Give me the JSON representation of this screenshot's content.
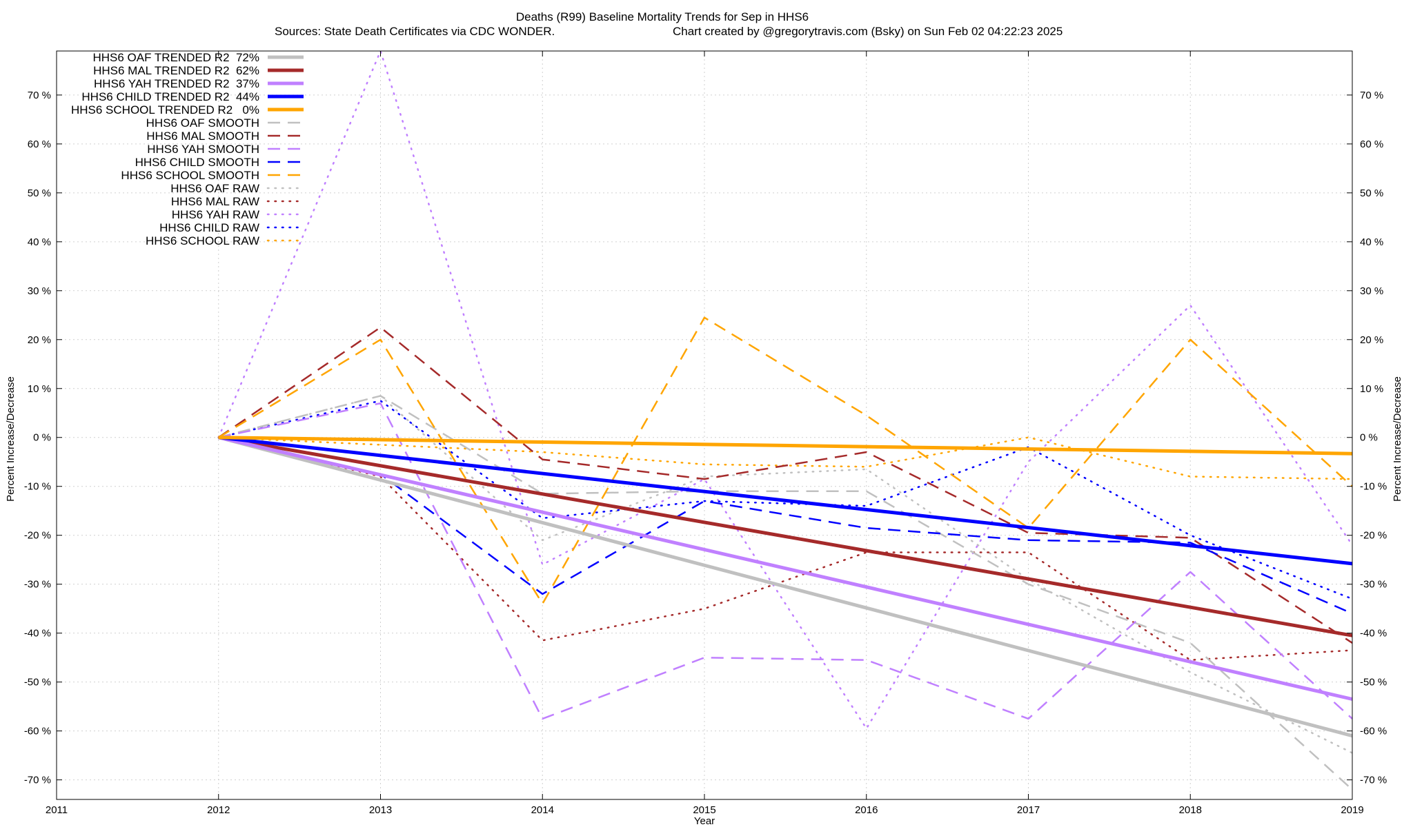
{
  "chart_data": {
    "type": "line",
    "title": "Deaths (R99)  Baseline Mortality Trends for Sep in HHS6",
    "subtitle_left": "Sources: State Death Certificates via CDC WONDER.",
    "subtitle_right": "Chart created by @gregorytravis.com (Bsky) on Sun Feb 02 04:22:23 2025",
    "xlabel": "Year",
    "ylabel": "Percent Increase/Decrease",
    "xlim": [
      2011,
      2019
    ],
    "ylim": [
      -74,
      79
    ],
    "x_ticks": [
      2011,
      2012,
      2013,
      2014,
      2015,
      2016,
      2017,
      2018,
      2019
    ],
    "y_ticks": [
      70,
      60,
      50,
      40,
      30,
      20,
      10,
      0,
      -10,
      -20,
      -30,
      -40,
      -50,
      -60,
      -70
    ],
    "y_tick_labels": [
      "70 %",
      "60 %",
      "50 %",
      "40 %",
      "30 %",
      "20 %",
      "10 %",
      "0 %",
      "-10 %",
      "-20 %",
      "-30 %",
      "-40 %",
      "-50 %",
      "-60 %",
      "-70 %"
    ],
    "x_tick_labels": [
      "2011",
      "2012",
      "2013",
      "2014",
      "2015",
      "2016",
      "2017",
      "2018",
      "2019"
    ],
    "grid": true,
    "legend_position": "top-left",
    "series": [
      {
        "name": "HHS6 OAF TRENDED R2  72%",
        "kind": "trend",
        "color": "#c0c0c0",
        "x": [
          2012,
          2019
        ],
        "values": [
          0,
          -61
        ]
      },
      {
        "name": "HHS6 MAL TRENDED R2  62%",
        "kind": "trend",
        "color": "#a52a2a",
        "x": [
          2012,
          2019
        ],
        "values": [
          0,
          -40.5
        ]
      },
      {
        "name": "HHS6 YAH TRENDED R2  37%",
        "kind": "trend",
        "color": "#c080ff",
        "x": [
          2012,
          2019
        ],
        "values": [
          0,
          -53.5
        ]
      },
      {
        "name": "HHS6 CHILD TRENDED R2  44%",
        "kind": "trend",
        "color": "#0000ff",
        "x": [
          2012,
          2019
        ],
        "values": [
          0,
          -25.8
        ]
      },
      {
        "name": "HHS6 SCHOOL TRENDED R2   0%",
        "kind": "trend",
        "color": "#ffa500",
        "x": [
          2012,
          2019
        ],
        "values": [
          0,
          -3.3
        ]
      },
      {
        "name": "HHS6 OAF SMOOTH",
        "kind": "smooth",
        "color": "#c0c0c0",
        "x": [
          2012,
          2013,
          2014,
          2015,
          2016,
          2017,
          2018,
          2019
        ],
        "values": [
          0,
          8.5,
          -11.5,
          -11,
          -11,
          -30,
          -42,
          -72
        ]
      },
      {
        "name": "HHS6 MAL SMOOTH",
        "kind": "smooth",
        "color": "#a52a2a",
        "x": [
          2012,
          2013,
          2014,
          2015,
          2016,
          2017,
          2018,
          2019
        ],
        "values": [
          0,
          22.5,
          -4.5,
          -8.5,
          -3,
          -19.5,
          -20.5,
          -42
        ]
      },
      {
        "name": "HHS6 YAH SMOOTH",
        "kind": "smooth",
        "color": "#c080ff",
        "x": [
          2012,
          2013,
          2014,
          2015,
          2016,
          2017,
          2018,
          2019
        ],
        "values": [
          0,
          7,
          -57.5,
          -45,
          -45.5,
          -57.5,
          -27.5,
          -57.5
        ]
      },
      {
        "name": "HHS6 CHILD SMOOTH",
        "kind": "smooth",
        "color": "#0000ff",
        "x": [
          2012,
          2013,
          2014,
          2015,
          2016,
          2017,
          2018,
          2019
        ],
        "values": [
          0,
          -7.5,
          -32,
          -13,
          -18.5,
          -21,
          -21.5,
          -36
        ]
      },
      {
        "name": "HHS6 SCHOOL SMOOTH",
        "kind": "smooth",
        "color": "#ffa500",
        "x": [
          2012,
          2013,
          2014,
          2015,
          2016,
          2017,
          2018,
          2019
        ],
        "values": [
          0,
          20,
          -34,
          24.5,
          4.5,
          -18.5,
          20,
          -10
        ]
      },
      {
        "name": "HHS6 OAF RAW",
        "kind": "raw",
        "color": "#c0c0c0",
        "x": [
          2012,
          2013,
          2014,
          2015,
          2016,
          2017,
          2018,
          2019
        ],
        "values": [
          0,
          8.5,
          -21,
          -8,
          -6.5,
          -29,
          -48,
          -64.5
        ]
      },
      {
        "name": "HHS6 MAL RAW",
        "kind": "raw",
        "color": "#a52a2a",
        "x": [
          2012,
          2013,
          2014,
          2015,
          2016,
          2017,
          2018,
          2019
        ],
        "values": [
          0,
          -8,
          -41.5,
          -35,
          -23.5,
          -23.5,
          -45.5,
          -43.5
        ]
      },
      {
        "name": "HHS6 YAH RAW",
        "kind": "raw",
        "color": "#c080ff",
        "x": [
          2012,
          2013,
          2014,
          2015,
          2016,
          2017,
          2018,
          2019
        ],
        "values": [
          0,
          79,
          -26,
          -8.5,
          -59.5,
          -5,
          27,
          -22
        ]
      },
      {
        "name": "HHS6 CHILD RAW",
        "kind": "raw",
        "color": "#0000ff",
        "x": [
          2012,
          2013,
          2014,
          2015,
          2016,
          2017,
          2018,
          2019
        ],
        "values": [
          0,
          7.5,
          -16.5,
          -13,
          -14,
          -2,
          -20,
          -33
        ]
      },
      {
        "name": "HHS6 SCHOOL RAW",
        "kind": "raw",
        "color": "#ffa500",
        "x": [
          2012,
          2013,
          2014,
          2015,
          2016,
          2017,
          2018,
          2019
        ],
        "values": [
          0,
          -1.5,
          -3,
          -5.5,
          -6,
          0,
          -8,
          -8.5
        ]
      }
    ]
  }
}
